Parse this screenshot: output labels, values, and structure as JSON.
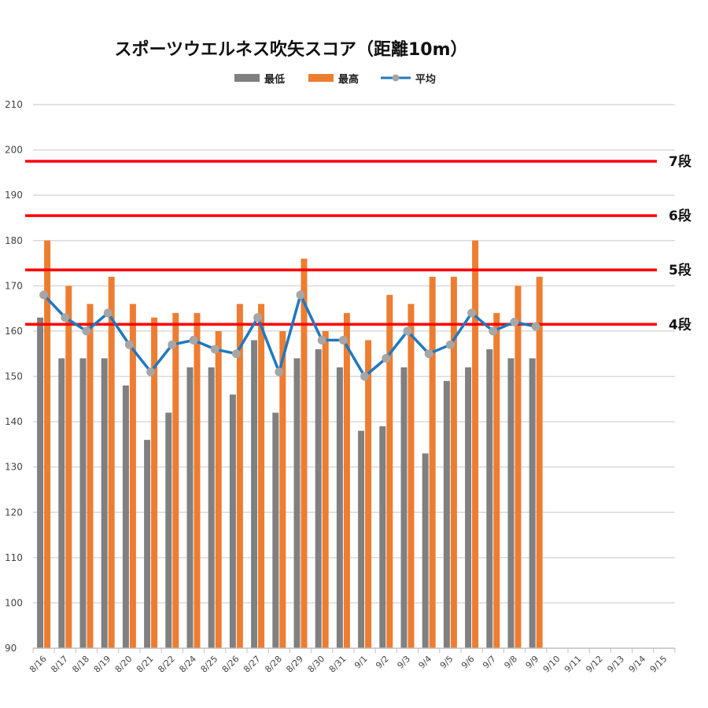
{
  "chart_data": {
    "type": "bar",
    "title": "スポーツウエルネス吹矢スコア（距離10m）",
    "xlabel": "",
    "ylabel": "",
    "ylim": [
      90,
      210
    ],
    "yticks": [
      90,
      100,
      110,
      120,
      130,
      140,
      150,
      160,
      170,
      180,
      190,
      200,
      210
    ],
    "grid": true,
    "legend_position": "top",
    "categories": [
      "8/16",
      "8/17",
      "8/18",
      "8/19",
      "8/20",
      "8/21",
      "8/22",
      "8/24",
      "8/25",
      "8/26",
      "8/27",
      "8/28",
      "8/29",
      "8/30",
      "8/31",
      "9/1",
      "9/2",
      "9/3",
      "9/4",
      "9/5",
      "9/6",
      "9/7",
      "9/8",
      "9/9",
      "9/10",
      "9/11",
      "9/12",
      "9/13",
      "9/14",
      "9/15"
    ],
    "series": [
      {
        "name": "最低",
        "type": "bar",
        "color": "#808080",
        "values": [
          163,
          154,
          154,
          154,
          148,
          136,
          142,
          152,
          152,
          146,
          158,
          142,
          154,
          156,
          152,
          138,
          139,
          152,
          133,
          149,
          152,
          156,
          154,
          154,
          null,
          null,
          null,
          null,
          null,
          null
        ]
      },
      {
        "name": "最高",
        "type": "bar",
        "color": "#ED7D31",
        "values": [
          180,
          170,
          166,
          172,
          166,
          163,
          164,
          164,
          160,
          166,
          166,
          160,
          176,
          160,
          164,
          158,
          168,
          166,
          172,
          172,
          180,
          164,
          170,
          172,
          null,
          null,
          null,
          null,
          null,
          null
        ]
      },
      {
        "name": "平均",
        "type": "line",
        "color": "#1F78C1",
        "marker_color": "#A6A6A6",
        "values": [
          168,
          163,
          160,
          164,
          157,
          151,
          157,
          158,
          156,
          155,
          163,
          151,
          168,
          158,
          158,
          150,
          154,
          160,
          155,
          157,
          164,
          160,
          162,
          161,
          null,
          null,
          null,
          null,
          null,
          null
        ]
      }
    ],
    "reference_lines": [
      {
        "label": "4段",
        "value": 161.5,
        "color": "#FF0000"
      },
      {
        "label": "5段",
        "value": 173.5,
        "color": "#FF0000"
      },
      {
        "label": "6段",
        "value": 185.5,
        "color": "#FF0000"
      },
      {
        "label": "7段",
        "value": 197.5,
        "color": "#FF0000"
      }
    ]
  }
}
